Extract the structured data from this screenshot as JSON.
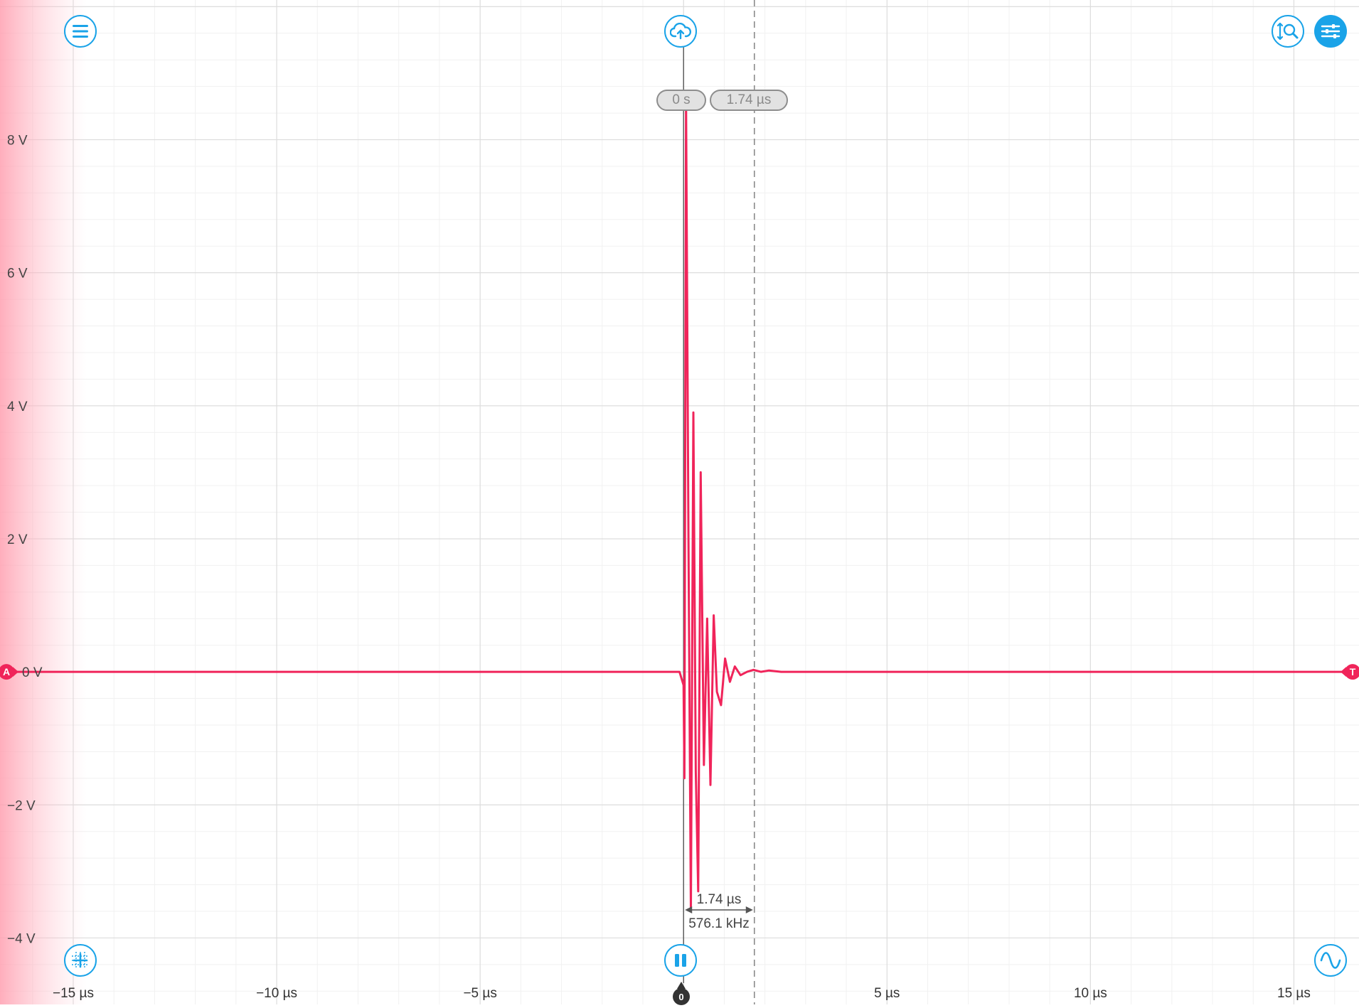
{
  "toolbar": {
    "menu_icon": "hamburger-menu-icon",
    "cloud_icon": "cloud-upload-icon",
    "zoom_icon": "vertical-zoom-magnifier-icon",
    "settings_icon": "sliders-settings-icon",
    "grid_icon": "crosshair-grid-icon",
    "pause_icon": "pause-icon",
    "waveform_icon": "sine-wave-icon"
  },
  "cursors": {
    "cursor1_label": "0 s",
    "cursor2_label": "1.74 µs",
    "delta_time": "1.74 µs",
    "delta_freq": "576.1 kHz"
  },
  "channel": {
    "marker": "A",
    "trigger_marker": "T",
    "trigger_time_marker": "0"
  },
  "colors": {
    "trace": "#f0245a",
    "accent": "#1aa3e8",
    "grid": "#e3e3e3"
  },
  "chart_data": {
    "type": "line",
    "title": "",
    "xlabel": "",
    "ylabel": "",
    "xlim": [
      -16.8,
      16.6
    ],
    "ylim": [
      -5.0,
      10.1
    ],
    "x_ticks": [
      -15,
      -10,
      -5,
      5,
      10,
      15
    ],
    "x_tick_labels": [
      "−15 µs",
      "−10 µs",
      "−5 µs",
      "5 µs",
      "10 µs",
      "15 µs"
    ],
    "y_ticks": [
      -4,
      -2,
      0,
      2,
      4,
      6,
      8
    ],
    "y_tick_labels": [
      "−4 V",
      "−2 V",
      "0 V",
      "2 V",
      "4 V",
      "6 V",
      "8 V"
    ],
    "grid": true,
    "series": [
      {
        "x": [
          -16.8,
          -0.1,
          0.0,
          0.02,
          0.06,
          0.12,
          0.18,
          0.24,
          0.3,
          0.36,
          0.42,
          0.5,
          0.58,
          0.66,
          0.74,
          0.82,
          0.92,
          1.02,
          1.14,
          1.26,
          1.4,
          1.56,
          1.72,
          1.9,
          2.1,
          2.4,
          3.0,
          16.6
        ],
        "y": [
          0.0,
          0.0,
          -0.2,
          -1.6,
          8.6,
          2.0,
          -3.6,
          3.9,
          -1.5,
          -3.3,
          3.0,
          -1.4,
          0.8,
          -1.7,
          0.85,
          -0.3,
          -0.5,
          0.2,
          -0.15,
          0.08,
          -0.05,
          0.0,
          0.03,
          0.0,
          0.02,
          0.0,
          0.0,
          0.0
        ]
      }
    ]
  }
}
